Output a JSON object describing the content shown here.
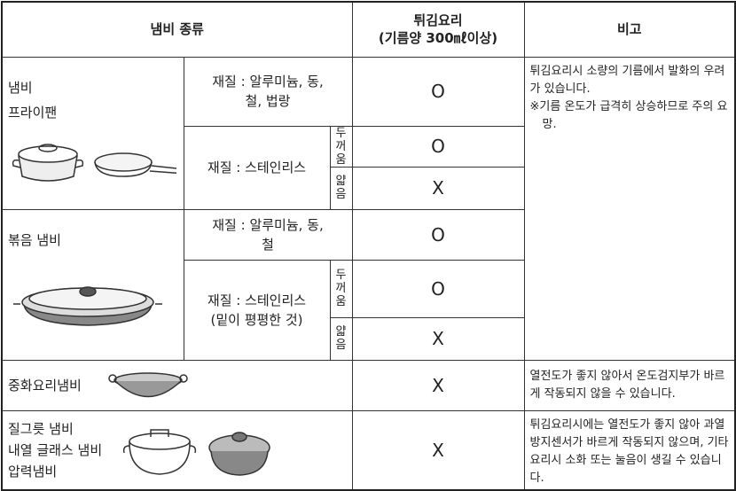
{
  "header": {
    "type": "냄비 종류",
    "frying": [
      "튀김요리",
      "(기름양 300㎖이상)"
    ],
    "note": "비고"
  },
  "rows": [
    {
      "names": [
        "냄비",
        "프라이팬"
      ],
      "material": [
        "재질 : 알루미늄, 동,",
        "철, 법랑"
      ],
      "result": "O",
      "note": [
        "튀김요리시 소량의 기름에서 발화의 우려가 있습니다.",
        "※기름 온도가 급격히 상승하므로 주의 요망."
      ]
    },
    {
      "material": [
        "재질 : 스테인리스"
      ],
      "thickness": "두꺼움",
      "result": "O"
    },
    {
      "thickness": "얇음",
      "result": "X"
    },
    {
      "names": [
        "볶음 냄비"
      ],
      "material": [
        "재질 : 알루미늄, 동,",
        "철"
      ],
      "result": "O"
    },
    {
      "material": [
        "재질 : 스테인리스",
        "(밑이 평평한 것)"
      ],
      "thickness": "두꺼움",
      "result": "O"
    },
    {
      "thickness": "얇음",
      "result": "X"
    },
    {
      "names": [
        "중화요리냄비"
      ],
      "result": "X",
      "note": [
        "열전도가 좋지 않아서 온도검지부가 바르게 작동되지 않을 수 있습니다."
      ]
    },
    {
      "names": [
        "질그릇 냄비",
        "내열 글래스 냄비",
        "압력냄비"
      ],
      "result": "X",
      "note": [
        "튀김요리시에는 열전도가 좋지 않아 과열방지센서가 바르게 작동되지 않으며, 기타 요리시 소화 또는 눌음이 생길 수 있습니다."
      ]
    }
  ]
}
